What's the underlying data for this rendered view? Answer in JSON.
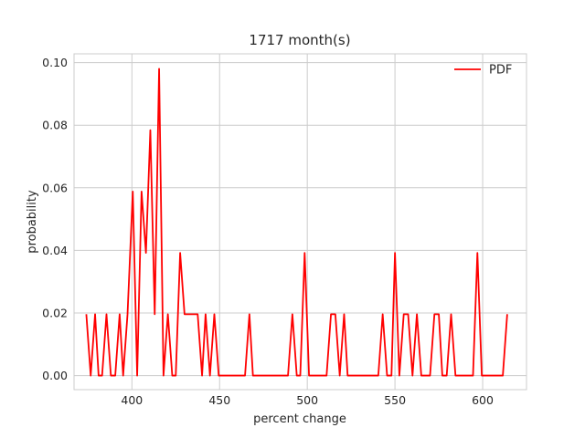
{
  "chart_data": {
    "type": "line",
    "title": "1717 month(s)",
    "xlabel": "percent change",
    "ylabel": "probability",
    "xlim": [
      367,
      625
    ],
    "ylim": [
      -0.0045,
      0.1028
    ],
    "xticks": [
      400,
      450,
      500,
      550,
      600
    ],
    "yticks": [
      0.0,
      0.02,
      0.04,
      0.06,
      0.08,
      0.1
    ],
    "xtick_labels": [
      "400",
      "450",
      "500",
      "550",
      "600"
    ],
    "ytick_labels": [
      "0.00",
      "0.02",
      "0.04",
      "0.06",
      "0.08",
      "0.10"
    ],
    "grid": true,
    "legend_position": "upper right",
    "series": [
      {
        "name": "PDF",
        "color": "#ff0000",
        "x": [
          374,
          376.5,
          379,
          381,
          383,
          385.5,
          388,
          390.5,
          393,
          395,
          397.5,
          400.5,
          403,
          405.5,
          408,
          410.5,
          413,
          415.5,
          418,
          420.5,
          423,
          425,
          427.5,
          430,
          432.5,
          435,
          437.5,
          440,
          442,
          444.5,
          447,
          449.5,
          452,
          454.5,
          457,
          459.5,
          462,
          464.5,
          467,
          469,
          471.5,
          474,
          476.5,
          479,
          481.5,
          484,
          486.5,
          489,
          491.5,
          494,
          496,
          498.5,
          501,
          503.5,
          506,
          508.5,
          511,
          513.5,
          516,
          518.5,
          521,
          523,
          525.5,
          528,
          530.5,
          533,
          535.5,
          538,
          540.5,
          543,
          545.5,
          548,
          550,
          552.5,
          555,
          557.5,
          560,
          562.5,
          565,
          567.5,
          570,
          572.5,
          575,
          577,
          579.5,
          582,
          584.5,
          587,
          589.5,
          592,
          594.5,
          597,
          599.5,
          602,
          604,
          606.5,
          609,
          611.5,
          614
        ],
        "y": [
          0.0196,
          0,
          0.0196,
          0,
          0,
          0.0196,
          0,
          0,
          0.0196,
          0,
          0.0196,
          0.0588,
          0,
          0.0588,
          0.0392,
          0.0784,
          0.0196,
          0.098,
          0,
          0.0196,
          0,
          0,
          0.0392,
          0.0196,
          0.0196,
          0.0196,
          0.0196,
          0,
          0.0196,
          0,
          0.0196,
          0,
          0,
          0,
          0,
          0,
          0,
          0,
          0.0196,
          0,
          0,
          0,
          0,
          0,
          0,
          0,
          0,
          0,
          0.0196,
          0,
          0,
          0.0392,
          0,
          0,
          0,
          0,
          0,
          0.0196,
          0.0196,
          0,
          0.0196,
          0,
          0,
          0,
          0,
          0,
          0,
          0,
          0,
          0.0196,
          0,
          0,
          0.0392,
          0,
          0.0196,
          0.0196,
          0,
          0.0196,
          0,
          0,
          0,
          0.0196,
          0.0196,
          0,
          0,
          0.0196,
          0,
          0,
          0,
          0,
          0,
          0.0392,
          0,
          0,
          0,
          0,
          0,
          0,
          0.0196
        ]
      }
    ]
  }
}
